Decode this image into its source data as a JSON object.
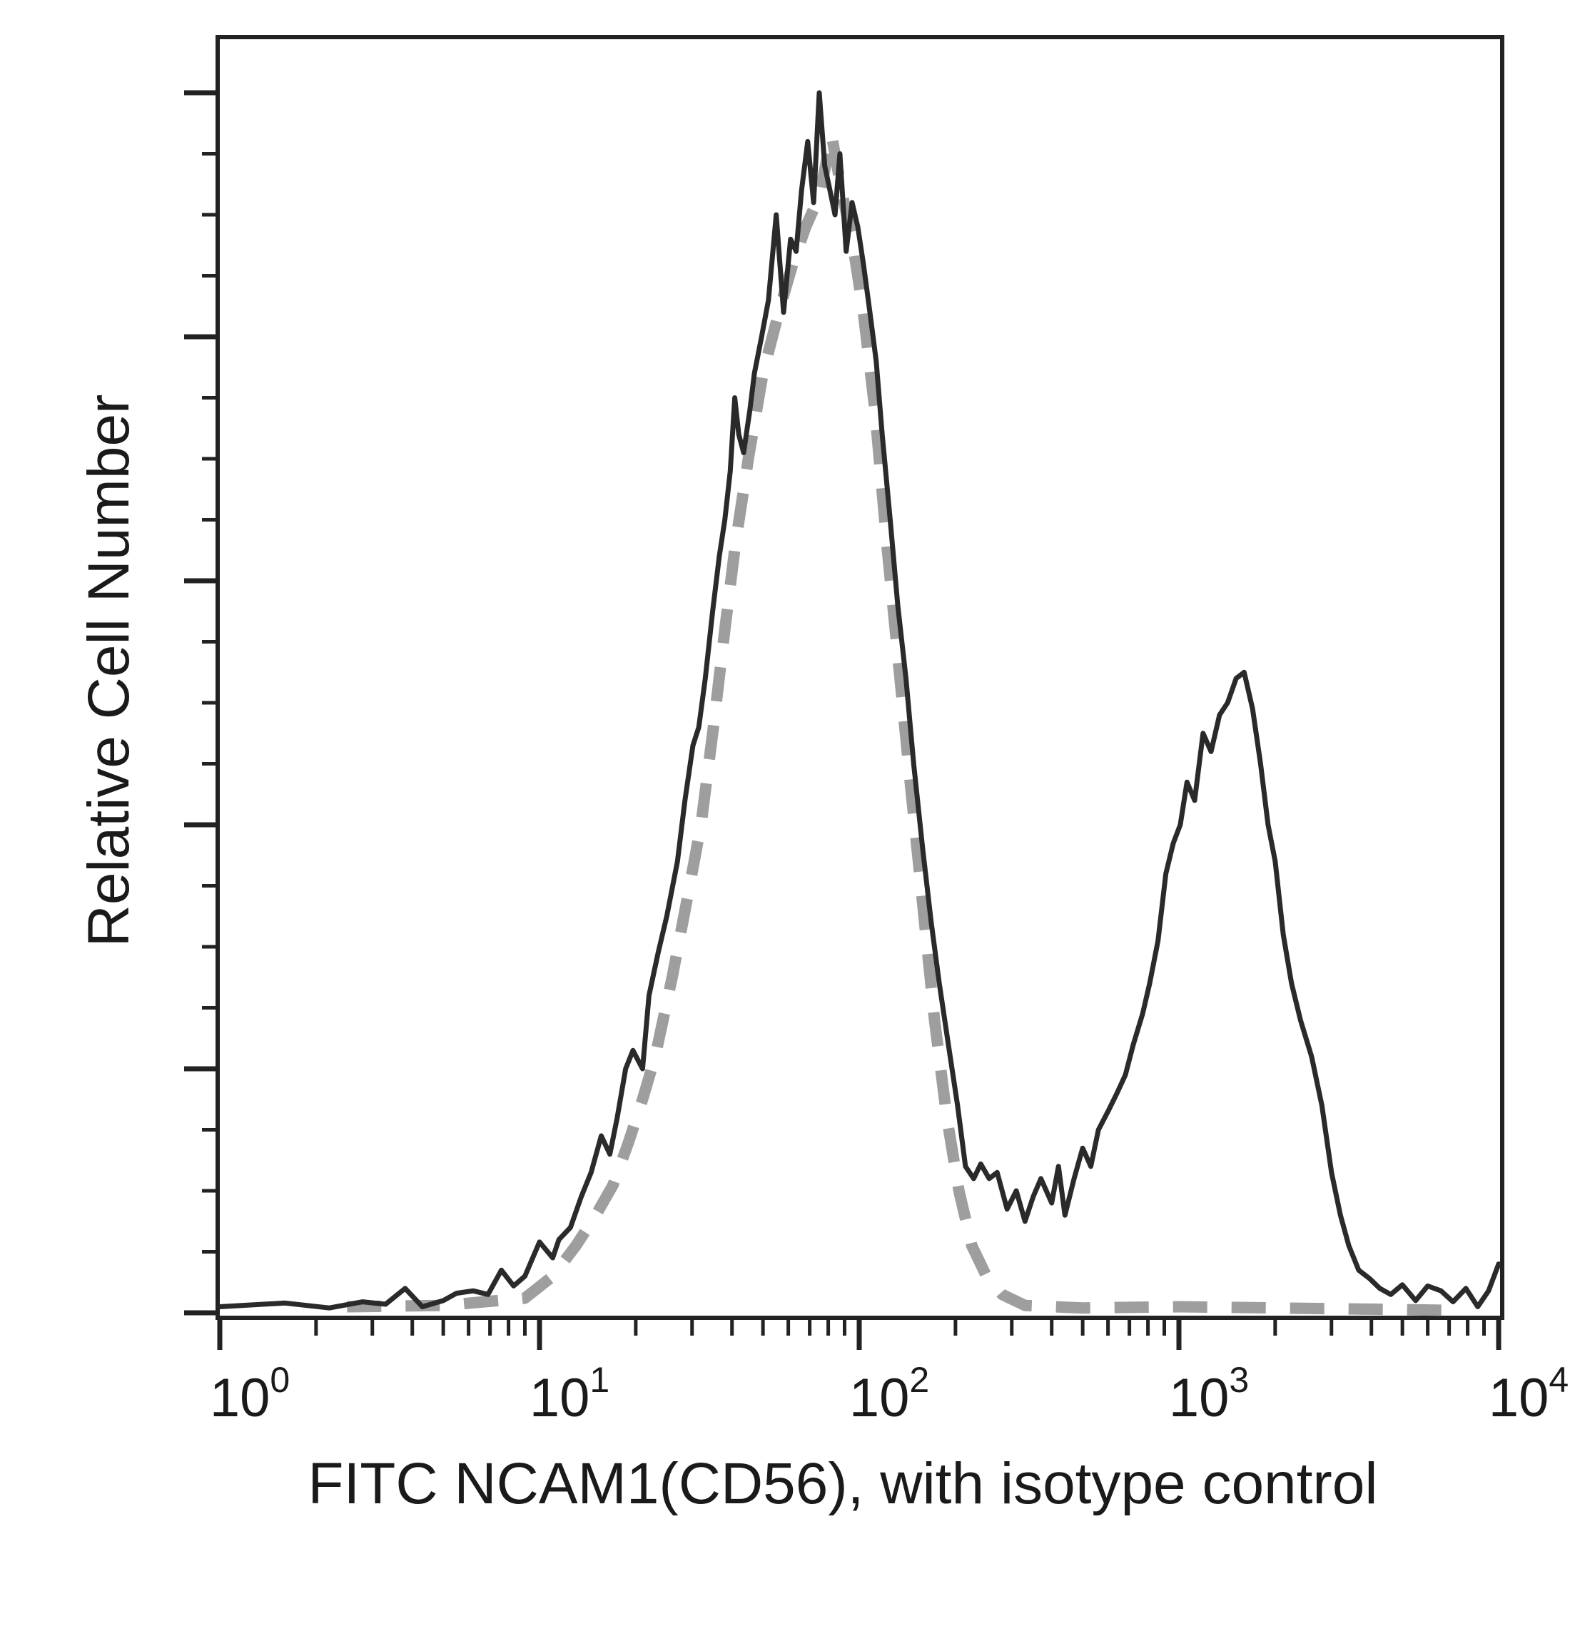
{
  "chart_data": {
    "type": "line",
    "title": "",
    "xlabel": "FITC NCAM1(CD56), with isotype control",
    "ylabel": "Relative Cell Number",
    "x_scale": "log",
    "xlim": [
      1,
      10000
    ],
    "ylim": [
      0,
      100
    ],
    "x_ticks": [
      {
        "base": "10",
        "exp": "0"
      },
      {
        "base": "10",
        "exp": "1"
      },
      {
        "base": "10",
        "exp": "2"
      },
      {
        "base": "10",
        "exp": "3"
      },
      {
        "base": "10",
        "exp": "4"
      }
    ],
    "y_tick_labels_shown": false,
    "grid": false,
    "legend": "none",
    "series": [
      {
        "style": "solid",
        "color": "#2a2a2a",
        "points": [
          [
            1.0,
            0.5
          ],
          [
            1.6,
            0.8
          ],
          [
            2.2,
            0.4
          ],
          [
            2.8,
            0.9
          ],
          [
            3.3,
            0.7
          ],
          [
            3.8,
            2.0
          ],
          [
            4.3,
            0.5
          ],
          [
            5.0,
            1.0
          ],
          [
            5.5,
            1.6
          ],
          [
            6.2,
            1.8
          ],
          [
            6.9,
            1.5
          ],
          [
            7.6,
            3.5
          ],
          [
            8.3,
            2.2
          ],
          [
            9.0,
            3.0
          ],
          [
            10.0,
            5.8
          ],
          [
            11.0,
            4.5
          ],
          [
            11.5,
            6.0
          ],
          [
            12.5,
            7.0
          ],
          [
            13.5,
            9.5
          ],
          [
            14.5,
            11.5
          ],
          [
            15.6,
            14.5
          ],
          [
            16.6,
            13.0
          ],
          [
            17.5,
            16.0
          ],
          [
            18.6,
            20.0
          ],
          [
            19.6,
            21.5
          ],
          [
            21.0,
            20.0
          ],
          [
            22.0,
            26.0
          ],
          [
            23.5,
            29.5
          ],
          [
            25.0,
            32.5
          ],
          [
            27.0,
            37.0
          ],
          [
            28.5,
            42.0
          ],
          [
            30.2,
            46.5
          ],
          [
            31.5,
            48.0
          ],
          [
            33.0,
            52.0
          ],
          [
            34.8,
            57.5
          ],
          [
            36.5,
            62.0
          ],
          [
            38.0,
            65.0
          ],
          [
            39.5,
            69.0
          ],
          [
            40.8,
            75.0
          ],
          [
            42.0,
            72.0
          ],
          [
            43.5,
            70.5
          ],
          [
            45.5,
            74.0
          ],
          [
            47.0,
            77.0
          ],
          [
            49.5,
            80.0
          ],
          [
            52.0,
            83.0
          ],
          [
            55.0,
            90.0
          ],
          [
            58.0,
            82.0
          ],
          [
            61.0,
            88.0
          ],
          [
            63.5,
            87.0
          ],
          [
            66.0,
            92.0
          ],
          [
            69.0,
            96.0
          ],
          [
            72.0,
            91.0
          ],
          [
            75.0,
            100.0
          ],
          [
            78.0,
            94.0
          ],
          [
            81.0,
            92.0
          ],
          [
            84.0,
            90.0
          ],
          [
            87.0,
            95.0
          ],
          [
            91.0,
            87.0
          ],
          [
            95.0,
            91.0
          ],
          [
            99.0,
            89.0
          ],
          [
            103.0,
            86.0
          ],
          [
            108.0,
            82.0
          ],
          [
            113.0,
            78.0
          ],
          [
            118.0,
            72.0
          ],
          [
            125.0,
            65.0
          ],
          [
            132.0,
            58.0
          ],
          [
            140.0,
            52.0
          ],
          [
            148.0,
            45.0
          ],
          [
            158.0,
            38.0
          ],
          [
            168.0,
            32.0
          ],
          [
            178.0,
            27.0
          ],
          [
            190.0,
            22.0
          ],
          [
            203.0,
            17.0
          ],
          [
            215.0,
            12.0
          ],
          [
            228.0,
            11.0
          ],
          [
            240.0,
            12.2
          ],
          [
            255.0,
            11.0
          ],
          [
            270.0,
            11.5
          ],
          [
            290.0,
            8.5
          ],
          [
            310.0,
            10.0
          ],
          [
            330.0,
            7.5
          ],
          [
            350.0,
            9.5
          ],
          [
            370.0,
            11.0
          ],
          [
            400.0,
            9.0
          ],
          [
            420.0,
            12.0
          ],
          [
            440.0,
            8.0
          ],
          [
            470.0,
            11.0
          ],
          [
            500.0,
            13.5
          ],
          [
            530.0,
            12.0
          ],
          [
            560.0,
            15.0
          ],
          [
            600.0,
            16.5
          ],
          [
            640.0,
            18.0
          ],
          [
            680.0,
            19.5
          ],
          [
            720.0,
            22.0
          ],
          [
            770.0,
            24.5
          ],
          [
            810.0,
            27.0
          ],
          [
            860.0,
            30.5
          ],
          [
            910.0,
            36.0
          ],
          [
            960.0,
            38.5
          ],
          [
            1010.0,
            40.0
          ],
          [
            1060.0,
            43.5
          ],
          [
            1120.0,
            42.0
          ],
          [
            1190.0,
            47.5
          ],
          [
            1260.0,
            46.0
          ],
          [
            1340.0,
            49.0
          ],
          [
            1420.0,
            50.0
          ],
          [
            1510.0,
            52.0
          ],
          [
            1600.0,
            52.5
          ],
          [
            1700.0,
            49.5
          ],
          [
            1800.0,
            45.0
          ],
          [
            1900.0,
            40.0
          ],
          [
            2000.0,
            37.0
          ],
          [
            2120.0,
            31.0
          ],
          [
            2250.0,
            27.0
          ],
          [
            2400.0,
            24.0
          ],
          [
            2600.0,
            21.0
          ],
          [
            2800.0,
            17.0
          ],
          [
            3000.0,
            11.5
          ],
          [
            3200.0,
            8.0
          ],
          [
            3400.0,
            5.5
          ],
          [
            3650.0,
            3.5
          ],
          [
            3950.0,
            2.8
          ],
          [
            4250.0,
            2.0
          ],
          [
            4600.0,
            1.5
          ],
          [
            5000.0,
            2.3
          ],
          [
            5500.0,
            1.0
          ],
          [
            6000.0,
            2.2
          ],
          [
            6600.0,
            1.8
          ],
          [
            7200.0,
            0.9
          ],
          [
            7900.0,
            2.0
          ],
          [
            8600.0,
            0.5
          ],
          [
            9300.0,
            1.8
          ],
          [
            10000.0,
            4.0
          ]
        ]
      },
      {
        "style": "dashed",
        "color": "#9e9e9e",
        "points": [
          [
            2.5,
            0.5
          ],
          [
            5.0,
            0.6
          ],
          [
            9.0,
            1.2
          ],
          [
            11.0,
            3.0
          ],
          [
            13.0,
            5.5
          ],
          [
            15.0,
            8.0
          ],
          [
            17.0,
            10.5
          ],
          [
            19.0,
            14.0
          ],
          [
            21.0,
            17.5
          ],
          [
            23.0,
            21.0
          ],
          [
            26.0,
            27.5
          ],
          [
            29.0,
            34.0
          ],
          [
            32.0,
            40.0
          ],
          [
            35.0,
            48.0
          ],
          [
            38.0,
            56.0
          ],
          [
            41.0,
            63.0
          ],
          [
            45.0,
            70.0
          ],
          [
            50.0,
            77.0
          ],
          [
            56.0,
            82.0
          ],
          [
            62.0,
            86.0
          ],
          [
            68.0,
            89.0
          ],
          [
            75.0,
            91.5
          ],
          [
            82.0,
            96.5
          ],
          [
            88.0,
            92.0
          ],
          [
            95.0,
            88.0
          ],
          [
            103.0,
            82.0
          ],
          [
            112.0,
            74.0
          ],
          [
            122.0,
            63.0
          ],
          [
            133.0,
            53.0
          ],
          [
            145.0,
            43.0
          ],
          [
            158.0,
            33.5
          ],
          [
            172.0,
            24.0
          ],
          [
            188.0,
            16.0
          ],
          [
            205.0,
            10.0
          ],
          [
            225.0,
            5.5
          ],
          [
            250.0,
            3.0
          ],
          [
            280.0,
            1.5
          ],
          [
            330.0,
            0.6
          ],
          [
            500.0,
            0.4
          ],
          [
            1000.0,
            0.5
          ],
          [
            2000.0,
            0.4
          ],
          [
            4000.0,
            0.3
          ],
          [
            7000.0,
            0.2
          ]
        ]
      }
    ]
  }
}
